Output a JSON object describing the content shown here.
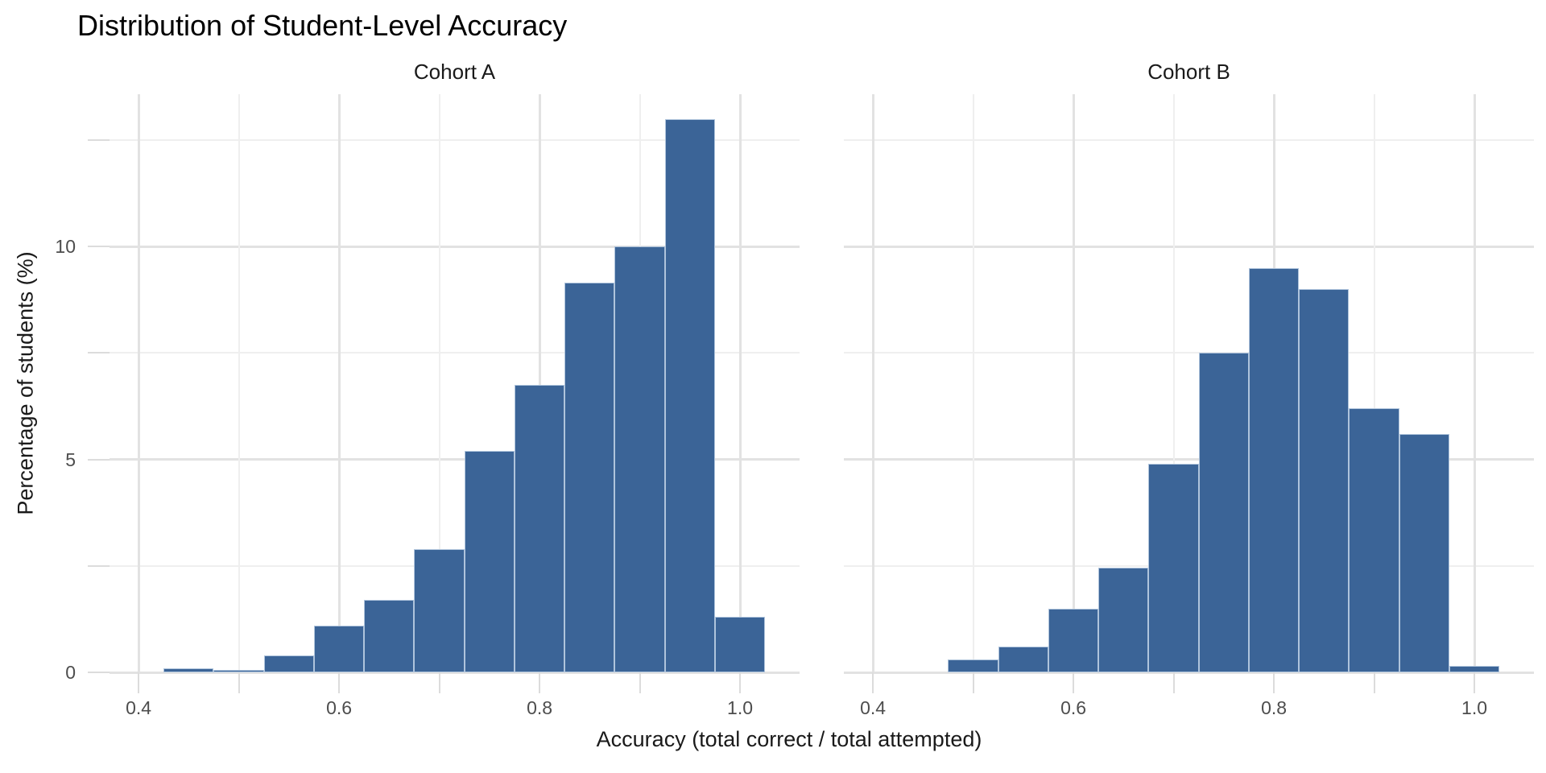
{
  "chart_data": {
    "type": "histogram",
    "title": "Distribution of Student-Level Accuracy",
    "xlabel": "Accuracy (total correct / total attempted)",
    "ylabel": "Percentage of students (%)",
    "legend_position": "none",
    "grid": "major+minor",
    "bin_width": 0.05,
    "xlim": [
      0.371,
      1.0594
    ],
    "ylim": [
      0,
      13.58
    ],
    "x_major_ticks": [
      0.4,
      0.6,
      0.8,
      1.0
    ],
    "x_tick_labels": [
      "0.4",
      "0.6",
      "0.8",
      "1.0"
    ],
    "x_minor_ticks": [
      0.5,
      0.7,
      0.9
    ],
    "y_major_gridlines": [
      0,
      5,
      10
    ],
    "y_tick_labels": [
      "0",
      "5",
      "10"
    ],
    "y_minor_gridlines": [
      2.5,
      7.5,
      12.5
    ],
    "facets": [
      {
        "label": "Cohort A",
        "bin_starts": [
          0.425,
          0.475,
          0.525,
          0.575,
          0.625,
          0.675,
          0.725,
          0.775,
          0.825,
          0.875,
          0.925,
          0.975
        ],
        "percentages": [
          0.1,
          0.05,
          0.4,
          1.1,
          1.7,
          2.9,
          5.2,
          6.75,
          9.15,
          10.0,
          13.0,
          1.3
        ]
      },
      {
        "label": "Cohort B",
        "bin_starts": [
          0.475,
          0.525,
          0.575,
          0.625,
          0.675,
          0.725,
          0.775,
          0.825,
          0.875,
          0.925,
          0.975
        ],
        "percentages": [
          0.3,
          0.6,
          1.5,
          2.45,
          4.9,
          7.5,
          9.5,
          9.0,
          6.2,
          5.6,
          0.15
        ]
      }
    ],
    "colors": {
      "bar_fill": "#3B6497",
      "bar_edge": "#AFC4DC",
      "grid_major": "#E2E2E2",
      "grid_minor": "#EFEFEF",
      "tick_mark": "#DCDCDC",
      "axis_text": "#4D4D4D",
      "title_text": "#000000",
      "background": "#FFFFFF"
    }
  }
}
